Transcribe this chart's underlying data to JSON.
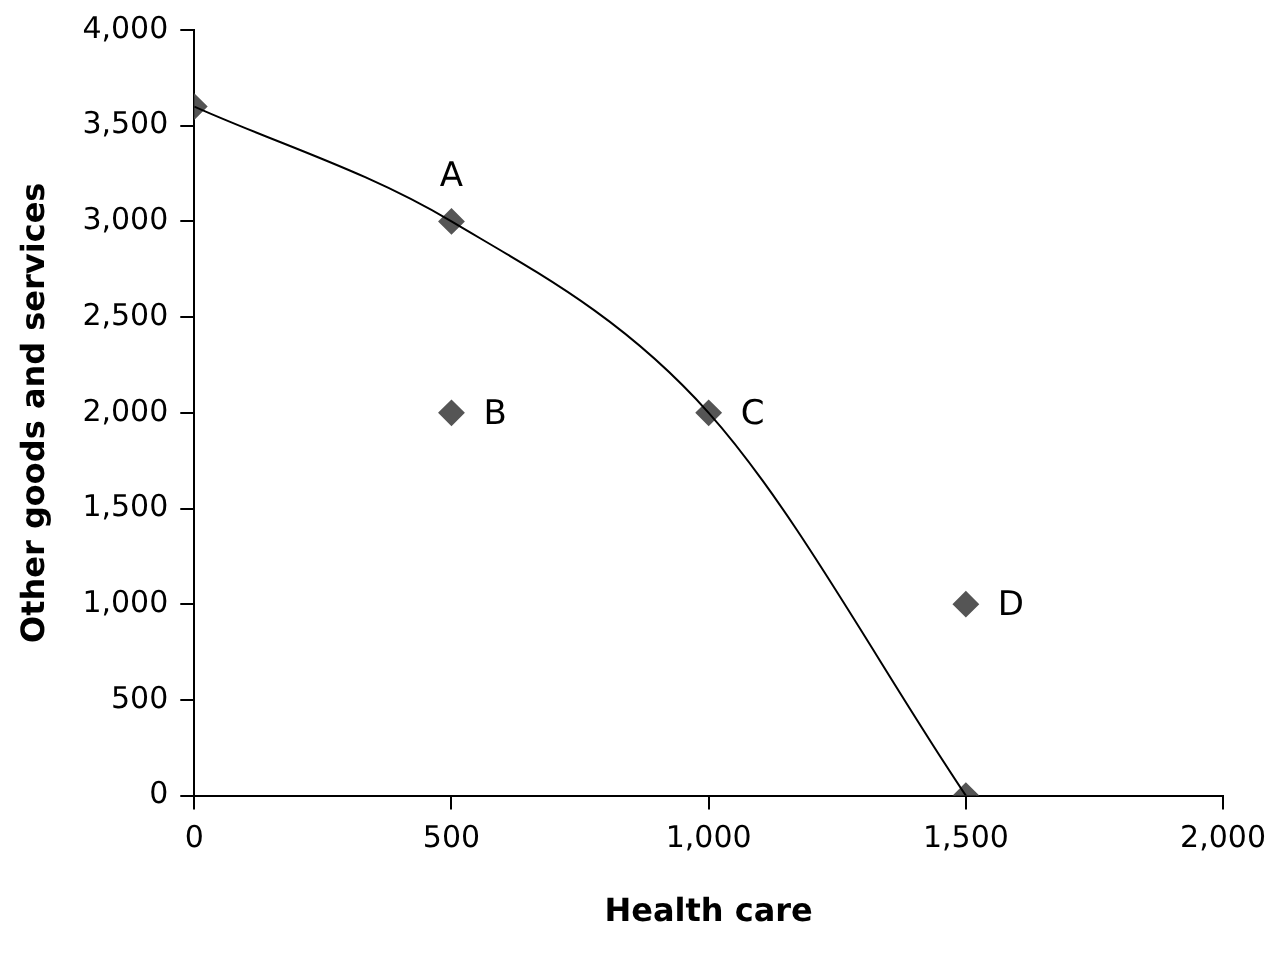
{
  "chart_data": {
    "type": "scatter",
    "xlabel": "Health care",
    "ylabel": "Other goods and services",
    "xlim": [
      0,
      2000
    ],
    "xticks": [
      0,
      500,
      {
        "value": 1000,
        "label": "1,000"
      },
      {
        "value": 1500,
        "label": "1,500"
      },
      {
        "value": 2000,
        "label": "2,000"
      }
    ],
    "ylim": [
      0,
      4000
    ],
    "yticks": [
      0,
      500,
      {
        "value": 1000,
        "label": "1,000"
      },
      {
        "value": 1500,
        "label": "1,500"
      },
      {
        "value": 2000,
        "label": "2,000"
      },
      {
        "value": 2500,
        "label": "2,500"
      },
      {
        "value": 3000,
        "label": "3,000"
      },
      {
        "value": 3500,
        "label": "3,500"
      },
      {
        "value": 4000,
        "label": "4,000"
      }
    ],
    "grid": false,
    "legend": false,
    "series": [
      {
        "type": "line",
        "color": "#000000",
        "marker": "none",
        "line_style": "solid",
        "x": [
          0,
          500,
          1000,
          1500
        ],
        "values": [
          3600,
          3000,
          2000,
          0
        ]
      },
      {
        "type": "scatter",
        "color": "#555555",
        "marker": "diamond",
        "x": [
          0,
          500,
          500,
          1000,
          1500,
          1500
        ],
        "values": [
          3600,
          3000,
          2000,
          2000,
          1000,
          0
        ]
      }
    ],
    "annotations": [
      {
        "text": "A",
        "x": 500,
        "y": 3000
      },
      {
        "text": "B",
        "x": 500,
        "y": 2000
      },
      {
        "text": "C",
        "x": 1000,
        "y": 2000
      },
      {
        "text": "D",
        "x": 1500,
        "y": 1000
      }
    ]
  }
}
